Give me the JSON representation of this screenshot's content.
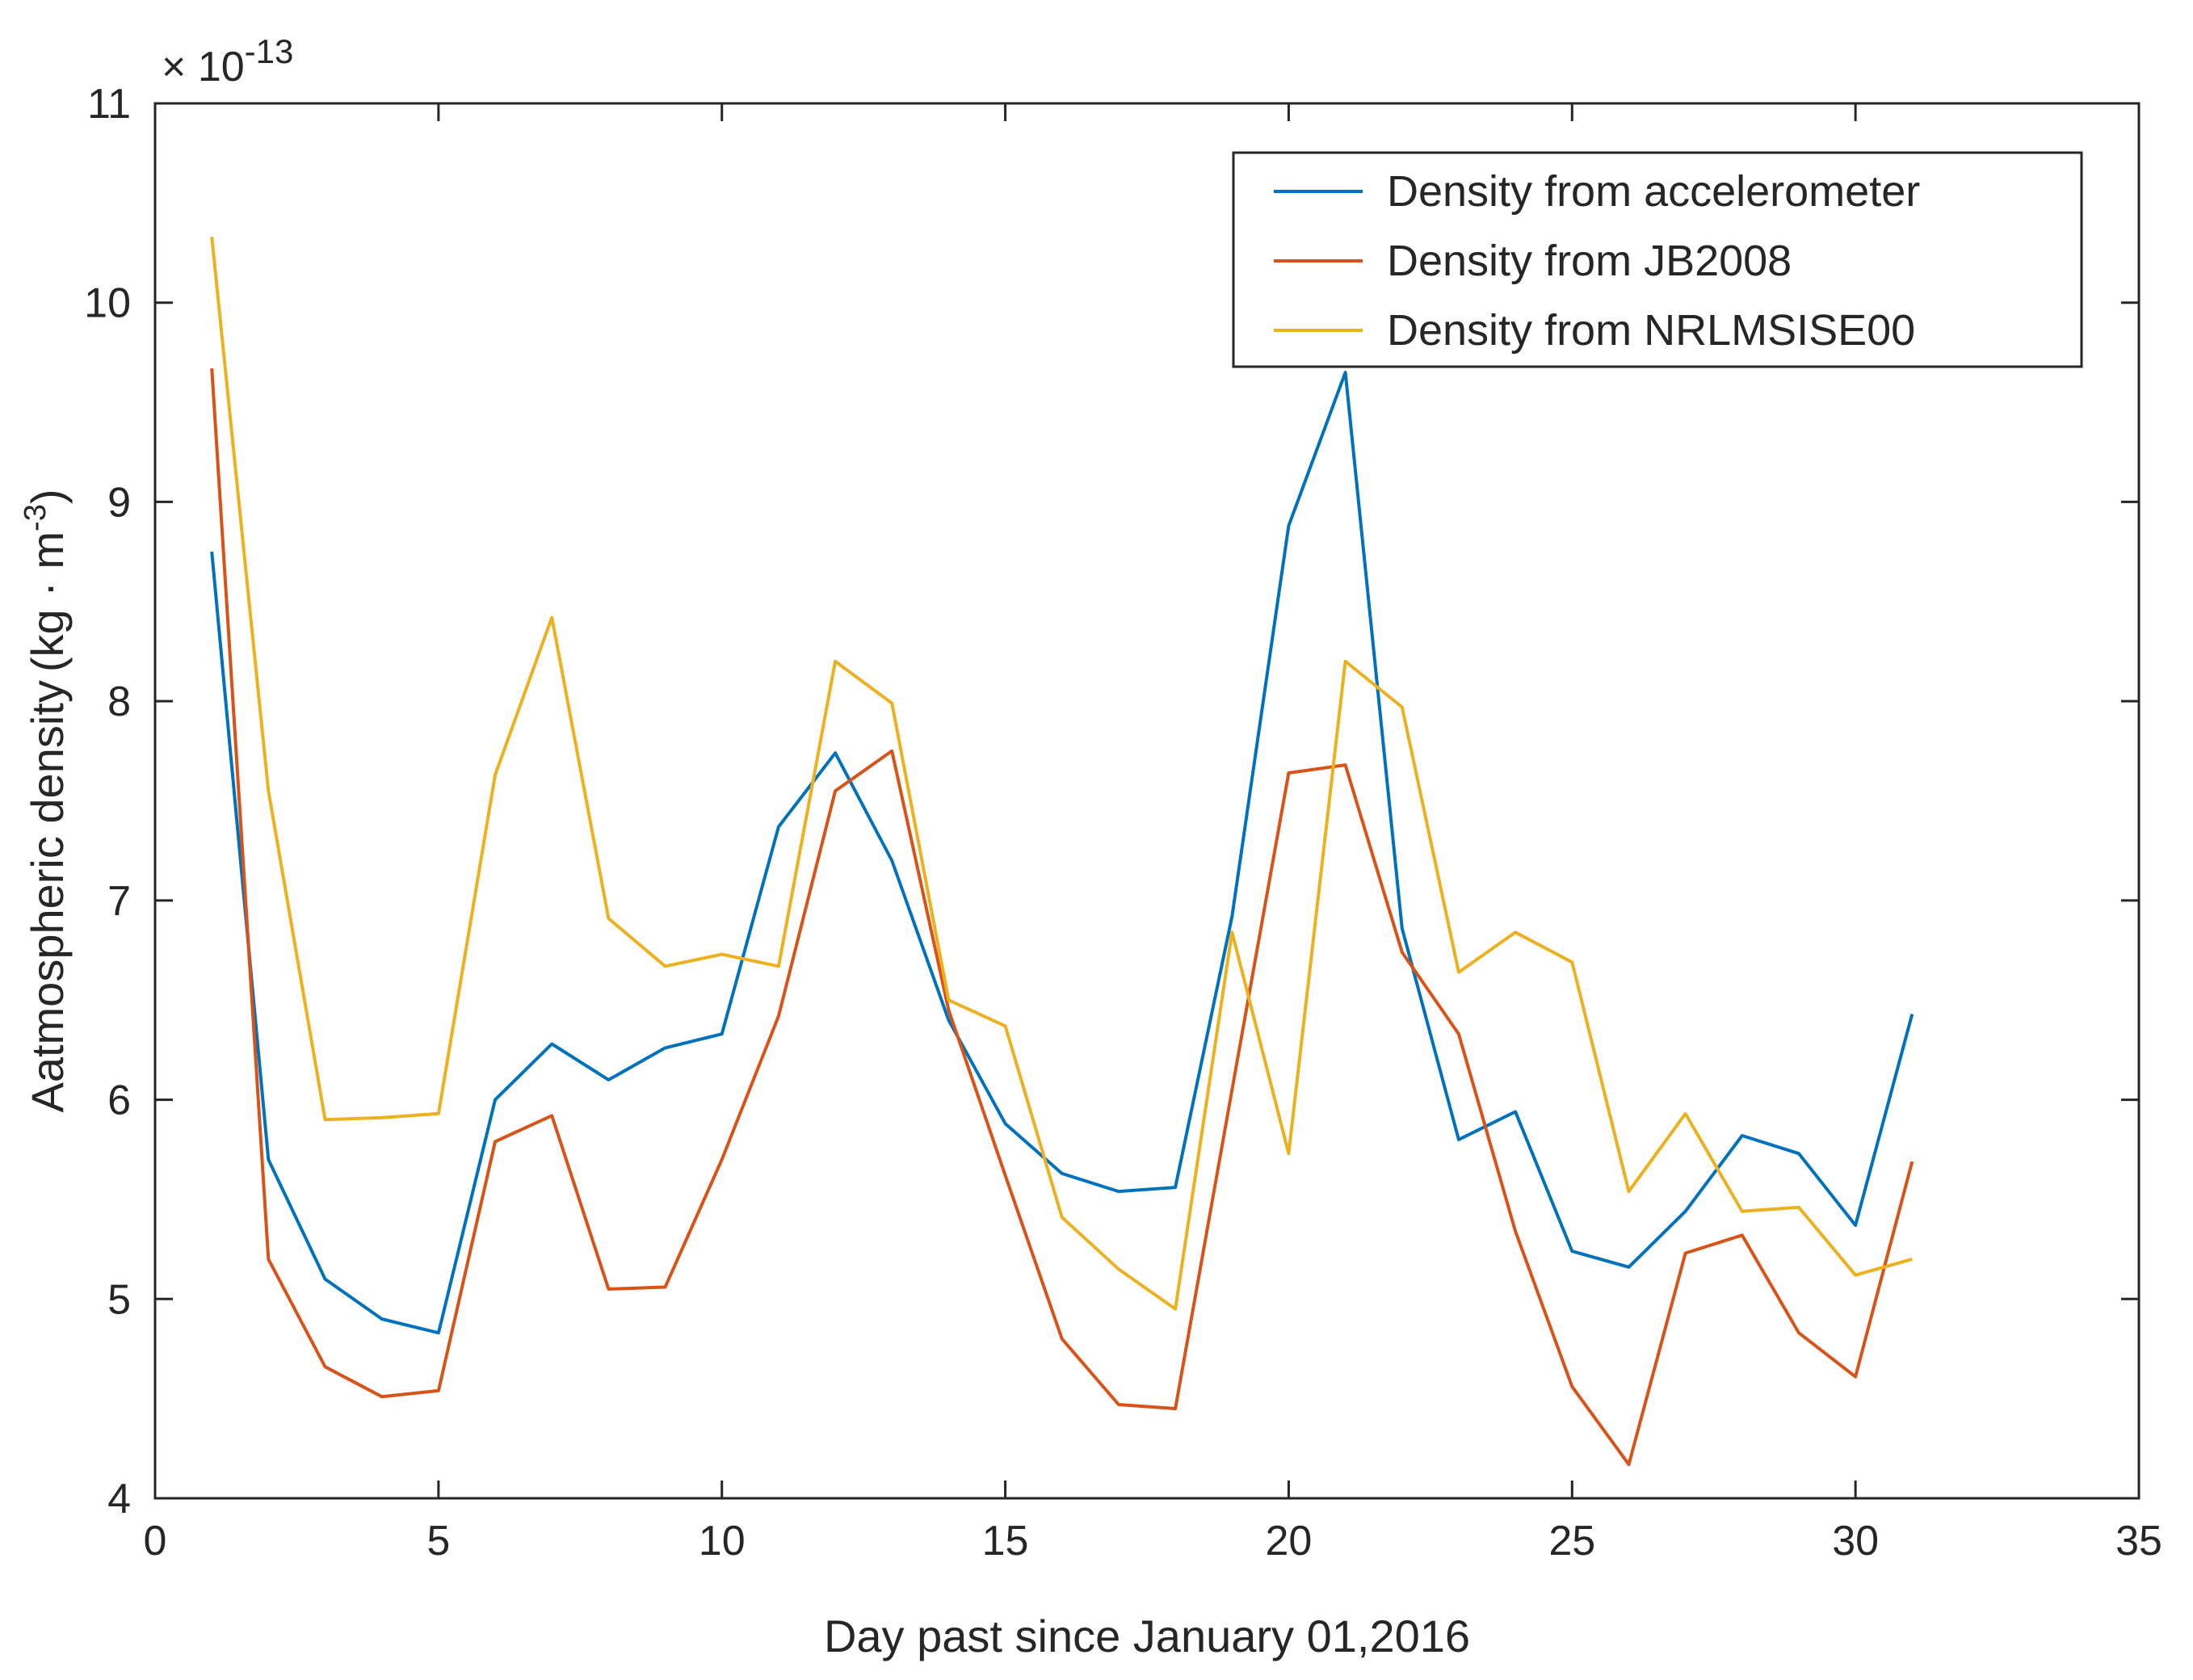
{
  "chart_data": {
    "type": "line",
    "title": "",
    "xlabel": "Day past since January 01,2016",
    "ylabel": "Aatmospheric density",
    "ylabel_unit": "(kg · m",
    "ylabel_unit_exp": "-3",
    "ylabel_unit_close": ")",
    "y_scale_label": "× 10",
    "y_scale_exp": "-13",
    "xlim": [
      0,
      35
    ],
    "ylim": [
      4,
      11
    ],
    "xticks": [
      0,
      5,
      10,
      15,
      20,
      25,
      30,
      35
    ],
    "yticks": [
      4,
      5,
      6,
      7,
      8,
      9,
      10,
      11
    ],
    "grid": false,
    "legend_position": "top-right",
    "x": [
      1,
      2,
      3,
      4,
      5,
      6,
      7,
      8,
      9,
      10,
      11,
      12,
      13,
      14,
      15,
      16,
      17,
      18,
      19,
      20,
      21,
      22,
      23,
      24,
      25,
      26,
      27,
      28,
      29,
      30,
      31
    ],
    "series": [
      {
        "name": "Density from accelerometer",
        "color": "#0072BD",
        "values": [
          8.75,
          5.7,
          5.1,
          4.9,
          4.83,
          6.0,
          6.28,
          6.1,
          6.26,
          6.33,
          7.37,
          7.74,
          7.2,
          6.4,
          5.88,
          5.63,
          5.54,
          5.56,
          6.92,
          8.88,
          9.65,
          6.86,
          5.8,
          5.94,
          5.24,
          5.16,
          5.44,
          5.82,
          5.73,
          5.37,
          6.43
        ]
      },
      {
        "name": "Density from JB2008",
        "color": "#D95319",
        "values": [
          9.67,
          5.2,
          4.66,
          4.51,
          4.54,
          5.79,
          5.92,
          5.05,
          5.06,
          5.7,
          6.42,
          7.55,
          7.75,
          6.45,
          5.62,
          4.8,
          4.47,
          4.45,
          6.05,
          7.64,
          7.68,
          6.74,
          6.33,
          5.34,
          4.56,
          4.17,
          5.23,
          5.32,
          4.83,
          4.61,
          5.69
        ]
      },
      {
        "name": "Density from NRLMSISE00",
        "color": "#EDB120",
        "values": [
          10.33,
          7.55,
          5.9,
          5.91,
          5.93,
          7.63,
          8.42,
          6.91,
          6.67,
          6.73,
          6.67,
          8.2,
          7.99,
          6.5,
          6.37,
          5.41,
          5.15,
          4.95,
          6.84,
          5.73,
          8.2,
          7.97,
          6.64,
          6.84,
          6.69,
          5.54,
          5.93,
          5.44,
          5.46,
          5.12,
          5.2
        ]
      }
    ]
  }
}
